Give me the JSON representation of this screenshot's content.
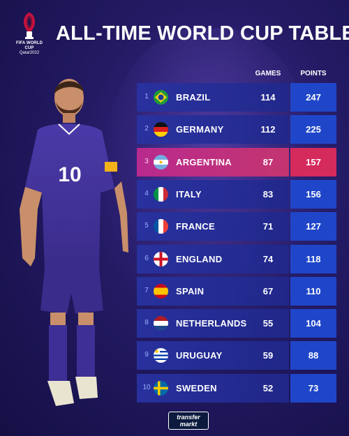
{
  "logo": {
    "line1": "FIFA WORLD CUP",
    "line2": "Qatar2022",
    "icon": "fifa-world-cup-trophy-logo"
  },
  "title": "ALL-TIME WORLD CUP TABLE",
  "columns": {
    "games": "GAMES",
    "points": "POINTS"
  },
  "rows": [
    {
      "rank": "1",
      "country": "BRAZIL",
      "games": "114",
      "points": "247",
      "flag": "brazil-flag-icon"
    },
    {
      "rank": "2",
      "country": "GERMANY",
      "games": "112",
      "points": "225",
      "flag": "germany-flag-icon"
    },
    {
      "rank": "3",
      "country": "ARGENTINA",
      "games": "87",
      "points": "157",
      "flag": "argentina-flag-icon",
      "highlight": true
    },
    {
      "rank": "4",
      "country": "ITALY",
      "games": "83",
      "points": "156",
      "flag": "italy-flag-icon"
    },
    {
      "rank": "5",
      "country": "FRANCE",
      "games": "71",
      "points": "127",
      "flag": "france-flag-icon"
    },
    {
      "rank": "6",
      "country": "ENGLAND",
      "games": "74",
      "points": "118",
      "flag": "england-flag-icon"
    },
    {
      "rank": "7",
      "country": "SPAIN",
      "games": "67",
      "points": "110",
      "flag": "spain-flag-icon"
    },
    {
      "rank": "8",
      "country": "NETHERLANDS",
      "games": "55",
      "points": "104",
      "flag": "netherlands-flag-icon"
    },
    {
      "rank": "9",
      "country": "URUGUAY",
      "games": "59",
      "points": "88",
      "flag": "uruguay-flag-icon"
    },
    {
      "rank": "10",
      "country": "SWEDEN",
      "games": "52",
      "points": "73",
      "flag": "sweden-flag-icon"
    }
  ],
  "player": {
    "shirt_number": "10"
  },
  "brand": {
    "line1": "transfer",
    "line2": "markt"
  },
  "colors": {
    "background": "#231a63",
    "points_box": "#1f46c9",
    "highlight": "#d42a5c"
  }
}
